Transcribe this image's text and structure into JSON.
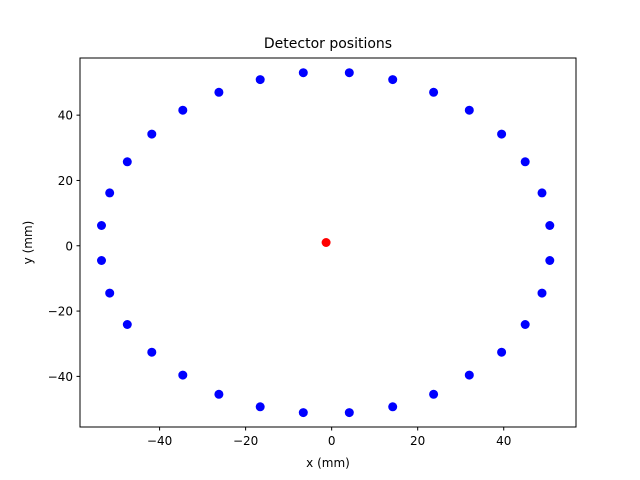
{
  "chart_data": {
    "type": "scatter",
    "title": "Detector positions",
    "xlabel": "x (mm)",
    "ylabel": "y (mm)",
    "xlim": [
      -58.5,
      56.8
    ],
    "ylim": [
      -55.5,
      57.5
    ],
    "xticks": [
      -40,
      -20,
      0,
      20,
      40
    ],
    "yticks": [
      -40,
      -20,
      0,
      20,
      40
    ],
    "xtick_labels": [
      "−40",
      "−20",
      "0",
      "20",
      "40"
    ],
    "ytick_labels": [
      "−40",
      "−20",
      "0",
      "20",
      "40"
    ],
    "grid": false,
    "series": [
      {
        "color": "#0000ff",
        "x": [
          4.1,
          14.2,
          23.7,
          32.0,
          39.5,
          45.0,
          48.9,
          50.7,
          50.7,
          48.9,
          45.0,
          39.5,
          32.0,
          23.7,
          14.2,
          4.1,
          -6.6,
          -16.6,
          -26.2,
          -34.6,
          -41.8,
          -47.5,
          -51.6,
          -53.5,
          -53.5,
          -51.6,
          -47.5,
          -41.8,
          -34.6,
          -26.2,
          -16.6,
          -6.6
        ],
        "y": [
          53.0,
          50.9,
          47.0,
          41.5,
          34.2,
          25.7,
          16.2,
          6.2,
          -4.5,
          -14.5,
          -24.1,
          -32.6,
          -39.6,
          -45.5,
          -49.3,
          -51.1,
          -51.1,
          -49.3,
          -45.5,
          -39.6,
          -32.6,
          -24.1,
          -14.5,
          -4.5,
          6.2,
          16.2,
          25.7,
          34.2,
          41.5,
          47.0,
          50.9,
          53.0
        ]
      },
      {
        "color": "#ff0000",
        "x": [
          -1.3
        ],
        "y": [
          1.0
        ]
      }
    ]
  }
}
